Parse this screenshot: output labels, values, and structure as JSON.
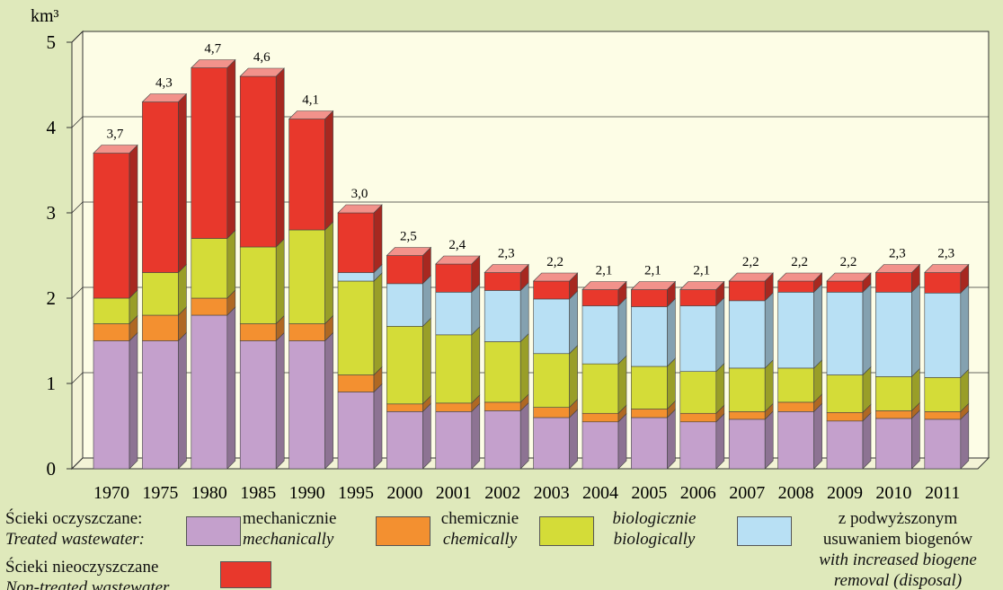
{
  "chart_data": {
    "type": "bar",
    "stacked": true,
    "ylabel": "km³",
    "categories": [
      "1970",
      "1975",
      "1980",
      "1985",
      "1990",
      "1995",
      "2000",
      "2001",
      "2002",
      "2003",
      "2004",
      "2005",
      "2006",
      "2007",
      "2008",
      "2009",
      "2010",
      "2011"
    ],
    "series": [
      {
        "name": "mechanicznie",
        "name_en": "mechanically",
        "color": "#c4a0cc",
        "values": [
          1.5,
          1.5,
          1.8,
          1.5,
          1.5,
          0.9,
          0.67,
          0.67,
          0.68,
          0.6,
          0.55,
          0.6,
          0.55,
          0.58,
          0.67,
          0.56,
          0.59,
          0.58
        ]
      },
      {
        "name": "chemicznie",
        "name_en": "chemically",
        "color": "#f39030",
        "values": [
          0.2,
          0.3,
          0.2,
          0.2,
          0.2,
          0.2,
          0.09,
          0.1,
          0.1,
          0.12,
          0.1,
          0.1,
          0.1,
          0.09,
          0.11,
          0.1,
          0.09,
          0.09
        ]
      },
      {
        "name": "biologicznie",
        "name_en": "biologically",
        "color": "#d4dc38",
        "values": [
          0.3,
          0.5,
          0.7,
          0.9,
          1.1,
          1.1,
          0.91,
          0.8,
          0.71,
          0.63,
          0.58,
          0.5,
          0.49,
          0.51,
          0.4,
          0.44,
          0.4,
          0.4
        ]
      },
      {
        "name": "z podwyższonym usuwaniem biogenów",
        "name_en": "with increased biogene removal (disposal)",
        "color": "#b8e0f4",
        "values": [
          0,
          0,
          0,
          0,
          0,
          0.1,
          0.5,
          0.5,
          0.6,
          0.64,
          0.68,
          0.7,
          0.77,
          0.79,
          0.89,
          0.97,
          0.99,
          0.99
        ]
      },
      {
        "name": "Ścieki nieoczyszczane",
        "name_en": "Non-treated wastewater",
        "color": "#e8382c",
        "values": [
          1.7,
          2.0,
          2.0,
          2.0,
          1.3,
          0.7,
          0.33,
          0.33,
          0.21,
          0.21,
          0.19,
          0.2,
          0.19,
          0.23,
          0.13,
          0.13,
          0.23,
          0.24
        ]
      }
    ],
    "totals": {
      "values": [
        3.7,
        4.3,
        4.7,
        4.6,
        4.1,
        3.0,
        2.5,
        2.4,
        2.3,
        2.2,
        2.1,
        2.1,
        2.1,
        2.2,
        2.2,
        2.2,
        2.3,
        2.3
      ],
      "value_labels": [
        "3,7",
        "4,3",
        "4,7",
        "4,6",
        "4,1",
        "3,0",
        "2,5",
        "2,4",
        "2,3",
        "2,2",
        "2,1",
        "2,1",
        "2,1",
        "2,2",
        "2,2",
        "2,2",
        "2,3",
        "2,3"
      ]
    },
    "legend": {
      "treated": "Ścieki oczyszczane:",
      "treated_en": "Treated wastewater:"
    },
    "ylim": [
      0,
      5
    ],
    "yticks": [
      0,
      1,
      2,
      3,
      4,
      5
    ],
    "grid": true
  }
}
